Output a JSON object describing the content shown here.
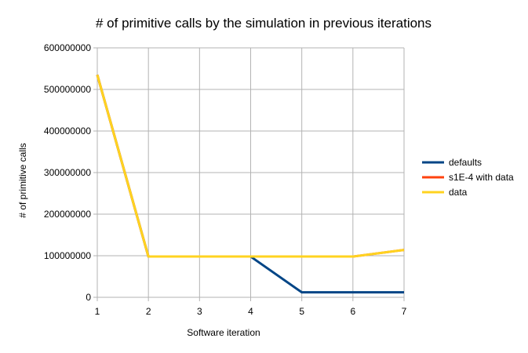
{
  "chart_data": {
    "type": "line",
    "title": "# of primitive calls by the simulation in previous iterations",
    "xlabel": "Software iteration",
    "ylabel": "# of primitive calls",
    "x": [
      1,
      2,
      3,
      4,
      5,
      6,
      7
    ],
    "xlim": [
      1,
      7
    ],
    "ylim": [
      0,
      600000000
    ],
    "yticks": [
      0,
      100000000,
      200000000,
      300000000,
      400000000,
      500000000,
      600000000
    ],
    "grid": true,
    "legend_position": "right",
    "series": [
      {
        "name": "defaults",
        "color": "#004586",
        "values": [
          535000000,
          98000000,
          98000000,
          98000000,
          12000000,
          12000000,
          12000000
        ]
      },
      {
        "name": "s1E-4 with data",
        "color": "#ff420e",
        "values": [
          535000000,
          98000000,
          98000000,
          98000000,
          98000000,
          98000000,
          114000000
        ]
      },
      {
        "name": "data",
        "color": "#ffd320",
        "values": [
          535000000,
          98000000,
          98000000,
          98000000,
          98000000,
          98000000,
          114000000
        ]
      }
    ]
  }
}
